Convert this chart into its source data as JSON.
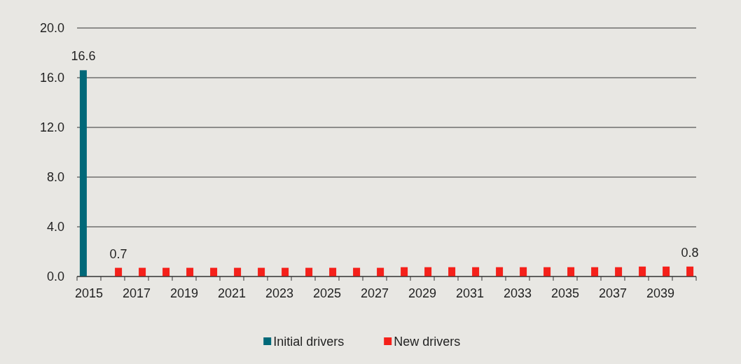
{
  "chart_data": {
    "type": "bar",
    "categories": [
      "2015",
      null,
      "2017",
      null,
      "2019",
      null,
      "2021",
      null,
      "2023",
      null,
      "2025",
      null,
      "2027",
      null,
      "2029",
      null,
      "2031",
      null,
      "2033",
      null,
      "2035",
      null,
      "2037",
      null,
      "2039",
      null
    ],
    "series": [
      {
        "name": "Initial drivers",
        "color": "#006878",
        "values": [
          16.6,
          null,
          null,
          null,
          null,
          null,
          null,
          null,
          null,
          null,
          null,
          null,
          null,
          null,
          null,
          null,
          null,
          null,
          null,
          null,
          null,
          null,
          null,
          null,
          null,
          null
        ],
        "value_labels": [
          "16.6",
          null,
          null,
          null,
          null,
          null,
          null,
          null,
          null,
          null,
          null,
          null,
          null,
          null,
          null,
          null,
          null,
          null,
          null,
          null,
          null,
          null,
          null,
          null,
          null,
          null
        ]
      },
      {
        "name": "New drivers",
        "color": "#f5201a",
        "values": [
          null,
          0.7,
          0.7,
          0.7,
          0.7,
          0.7,
          0.7,
          0.7,
          0.7,
          0.7,
          0.7,
          0.7,
          0.7,
          0.75,
          0.75,
          0.75,
          0.75,
          0.75,
          0.75,
          0.75,
          0.75,
          0.75,
          0.75,
          0.8,
          0.8,
          0.8
        ],
        "value_labels": [
          null,
          "0.7",
          null,
          null,
          null,
          null,
          null,
          null,
          null,
          null,
          null,
          null,
          null,
          null,
          null,
          null,
          null,
          null,
          null,
          null,
          null,
          null,
          null,
          null,
          null,
          "0.8"
        ]
      }
    ],
    "ylim": [
      0,
      20
    ],
    "yticks": [
      {
        "value": 0,
        "label": "0.0"
      },
      {
        "value": 4,
        "label": "4.0"
      },
      {
        "value": 8,
        "label": "8.0"
      },
      {
        "value": 12,
        "label": "12.0"
      },
      {
        "value": 16,
        "label": "16.0"
      },
      {
        "value": 20,
        "label": "20.0"
      }
    ],
    "grid": "y",
    "legend": "bottom"
  }
}
